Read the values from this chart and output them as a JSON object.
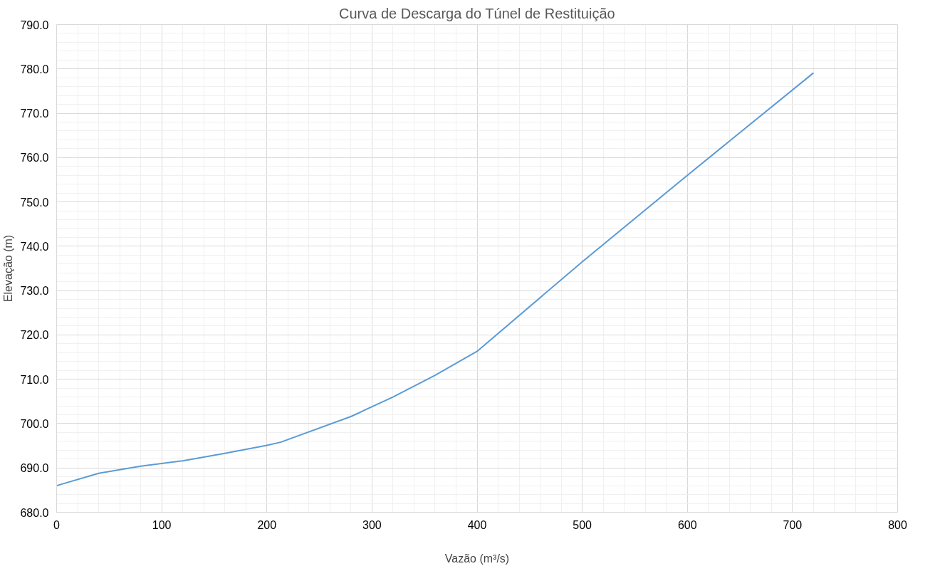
{
  "chart_data": {
    "type": "line",
    "title": "Curva de Descarga do Túnel de Restituição",
    "xlabel": "Vazão (m³/s)",
    "ylabel": "Elevação (m)",
    "x": [
      0,
      40,
      80,
      120,
      160,
      200,
      213,
      280,
      320,
      360,
      400,
      500,
      600,
      720
    ],
    "series": [
      {
        "color": "#5b9bd5",
        "values": [
          686.0,
          688.8,
          690.4,
          691.6,
          693.3,
          695.1,
          695.8,
          701.6,
          706.0,
          710.9,
          716.3,
          736.5,
          756.0,
          779.1
        ]
      }
    ],
    "xlim": [
      0,
      800
    ],
    "xticks": [
      0,
      100,
      200,
      300,
      400,
      500,
      600,
      700,
      800
    ],
    "ylim": [
      680,
      790
    ],
    "yticks": [
      {
        "value": 680,
        "label": "680.0"
      },
      {
        "value": 690,
        "label": "690.0"
      },
      {
        "value": 700,
        "label": "700.0"
      },
      {
        "value": 710,
        "label": "710.0"
      },
      {
        "value": 720,
        "label": "720.0"
      },
      {
        "value": 730,
        "label": "730.0"
      },
      {
        "value": 740,
        "label": "740.0"
      },
      {
        "value": 750,
        "label": "750.0"
      },
      {
        "value": 760,
        "label": "760.0"
      },
      {
        "value": 770,
        "label": "770.0"
      },
      {
        "value": 780,
        "label": "780.0"
      },
      {
        "value": 790,
        "label": "790.0"
      }
    ],
    "grid": true,
    "marker": "none",
    "line_style": "solid"
  }
}
